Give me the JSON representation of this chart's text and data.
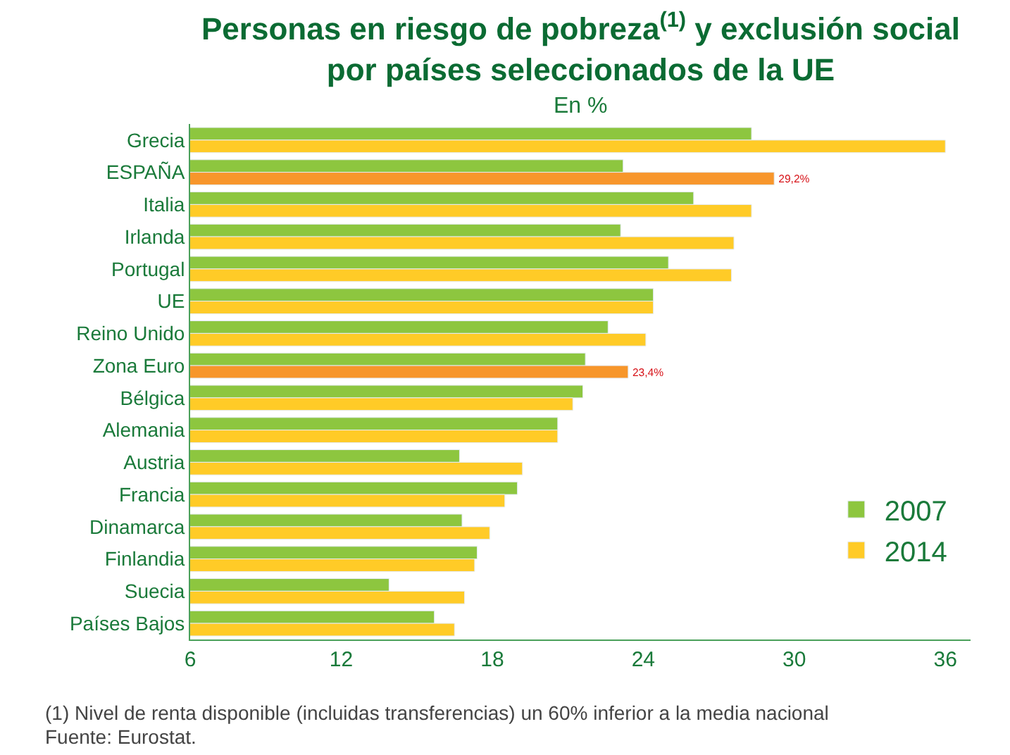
{
  "chart_data": {
    "type": "bar",
    "orientation": "horizontal",
    "title": "Personas en riesgo de pobreza$^{(1)}$ y exclusión social\npor países seleccionados de la UE",
    "subtitle": "En %",
    "categories": [
      "Grecia",
      "ESPAÑA",
      "Italia",
      "Irlanda",
      "Portugal",
      "UE",
      "Reino Unido",
      "Zona Euro",
      "Bélgica",
      "Alemania",
      "Austria",
      "Francia",
      "Dinamarca",
      "Finlandia",
      "Suecia",
      "Países Bajos"
    ],
    "series": [
      {
        "name": "2007",
        "color": "#8dc63f",
        "values": [
          28.3,
          23.2,
          26.0,
          23.1,
          25.0,
          24.4,
          22.6,
          21.7,
          21.6,
          20.6,
          16.7,
          19.0,
          16.8,
          17.4,
          13.9,
          15.7
        ]
      },
      {
        "name": "2014",
        "color": "#ffcb27",
        "colors": [
          "#ffcb27",
          "#f7962b",
          "#ffcb27",
          "#ffcb27",
          "#ffcb27",
          "#ffcb27",
          "#ffcb27",
          "#f7962b",
          "#ffcb27",
          "#ffcb27",
          "#ffcb27",
          "#ffcb27",
          "#ffcb27",
          "#ffcb27",
          "#ffcb27",
          "#ffcb27"
        ],
        "values": [
          36.0,
          29.2,
          28.3,
          27.6,
          27.5,
          24.4,
          24.1,
          23.4,
          21.2,
          20.6,
          19.2,
          18.5,
          17.9,
          17.3,
          16.9,
          16.5
        ],
        "value_labels": [
          null,
          "29,2%",
          null,
          null,
          null,
          null,
          null,
          "23,4%",
          null,
          null,
          null,
          null,
          null,
          null,
          null,
          null
        ]
      }
    ],
    "xlim": [
      6,
      37
    ],
    "xticks": [
      6,
      12,
      18,
      24,
      30,
      36
    ],
    "legend": "bottom right",
    "annotations": [
      "(1) Nivel de renta disponible (incluidas transferencias) un 60% inferior a la media nacional",
      "Fuente: Eurostat."
    ]
  }
}
